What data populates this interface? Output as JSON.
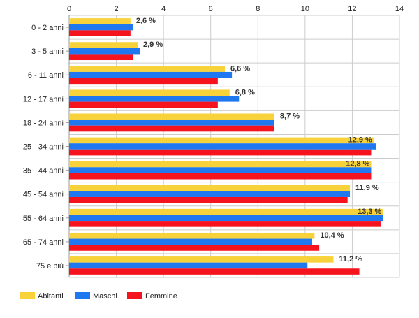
{
  "chart_data": {
    "type": "bar",
    "orientation": "horizontal",
    "categories": [
      "0 - 2 anni",
      "3 - 5 anni",
      "6 - 11 anni",
      "12 - 17 anni",
      "18 - 24 anni",
      "25 - 34 anni",
      "35 - 44 anni",
      "45 - 54 anni",
      "55 - 64 anni",
      "65 - 74 anni",
      "75 e più"
    ],
    "series": [
      {
        "name": "Abitanti",
        "color": "#f7d23a",
        "values": [
          2.6,
          2.9,
          6.6,
          6.8,
          8.7,
          12.9,
          12.8,
          11.9,
          13.3,
          10.4,
          11.2
        ]
      },
      {
        "name": "Maschi",
        "color": "#1f78f0",
        "values": [
          2.7,
          3.0,
          6.9,
          7.2,
          8.7,
          13.0,
          12.8,
          11.9,
          13.3,
          10.3,
          10.1
        ]
      },
      {
        "name": "Femmine",
        "color": "#f5141e",
        "values": [
          2.6,
          2.7,
          6.3,
          6.3,
          8.7,
          12.8,
          12.8,
          11.8,
          13.2,
          10.6,
          12.3
        ]
      }
    ],
    "data_labels": [
      "2,6 %",
      "2,9 %",
      "6,6 %",
      "6,8 %",
      "8,7 %",
      "12,9 %",
      "12,8 %",
      "11,9 %",
      "13,3 %",
      "10,4 %",
      "11,2 %"
    ],
    "xlim": [
      0,
      14
    ],
    "xticks": [
      "0",
      "2",
      "4",
      "6",
      "8",
      "10",
      "12",
      "14"
    ],
    "grid": true,
    "legend_position": "bottom-left"
  }
}
